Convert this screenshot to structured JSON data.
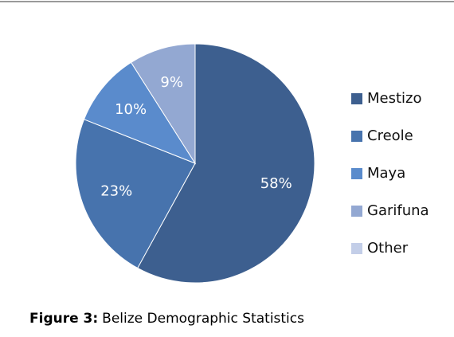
{
  "chart_data": {
    "type": "pie",
    "categories": [
      "Mestizo",
      "Creole",
      "Maya",
      "Garifuna",
      "Other"
    ],
    "values": [
      58,
      23,
      10,
      9,
      0
    ],
    "value_labels": [
      "58%",
      "23%",
      "10%",
      "9%",
      null
    ],
    "colors": [
      "#3d5f8f",
      "#4773ad",
      "#5a8bcc",
      "#93a8d2",
      "#c3cee8"
    ],
    "legend": "right"
  },
  "caption": {
    "label": "Figure 3:",
    "text": "Belize Demographic Statistics"
  }
}
